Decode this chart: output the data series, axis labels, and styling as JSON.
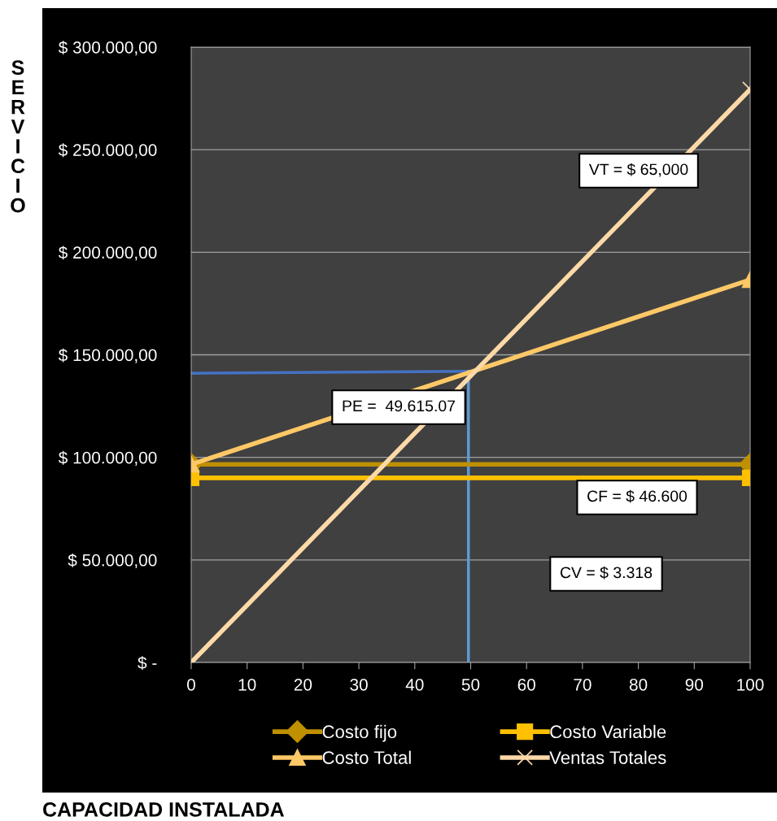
{
  "chart_data": {
    "type": "line",
    "ylabel": "SERVICIO",
    "series": [
      {
        "name": "Costo fijo",
        "color": "#bf9000",
        "x": [
          0,
          100
        ],
        "values": [
          96600,
          96600
        ],
        "marker": "diamond"
      },
      {
        "name": "Costo Variable",
        "color": "#ffc000",
        "x": [
          0,
          100
        ],
        "values": [
          90000,
          90000
        ],
        "marker": "square"
      },
      {
        "name": "Costo Total",
        "color": "#ffc866",
        "x": [
          0,
          100
        ],
        "values": [
          96600,
          186600
        ],
        "marker": "triangle"
      },
      {
        "name": "Ventas Totales",
        "color": "#fdd9a8",
        "x": [
          0,
          100
        ],
        "values": [
          0,
          279400
        ],
        "marker": "cross"
      },
      {
        "type": "line",
        "color": "#4472c4",
        "x": [
          0,
          49.6
        ],
        "values": [
          141000,
          142000
        ],
        "marker": "none"
      },
      {
        "type": "line",
        "color": "#5b9bd5",
        "x": [
          49.6,
          49.6
        ],
        "values": [
          142000,
          0
        ],
        "marker": "none"
      }
    ],
    "annotations": [
      "VT = $ 65,000",
      "PE =  49.615.07",
      "CF = $ 46.600",
      "CV = $ 3.318",
      "CAPACIDAD INSTALADA"
    ],
    "xlim": [
      0,
      100
    ],
    "xticks": [
      0,
      10,
      20,
      30,
      40,
      50,
      60,
      70,
      80,
      90,
      100
    ],
    "ylim": [
      0,
      300000
    ],
    "yticks": [
      {
        "value": 0,
        "label": "$ -"
      },
      {
        "value": 50000,
        "label": "$ 50.000,00"
      },
      {
        "value": 100000,
        "label": "$ 100.000,00"
      },
      {
        "value": 150000,
        "label": "$ 150.000,00"
      },
      {
        "value": 200000,
        "label": "$ 200.000,00"
      },
      {
        "value": 250000,
        "label": "$ 250.000,00"
      },
      {
        "value": 300000,
        "label": "$ 300.000,00"
      }
    ],
    "grid": "y",
    "legend": "bottom"
  }
}
